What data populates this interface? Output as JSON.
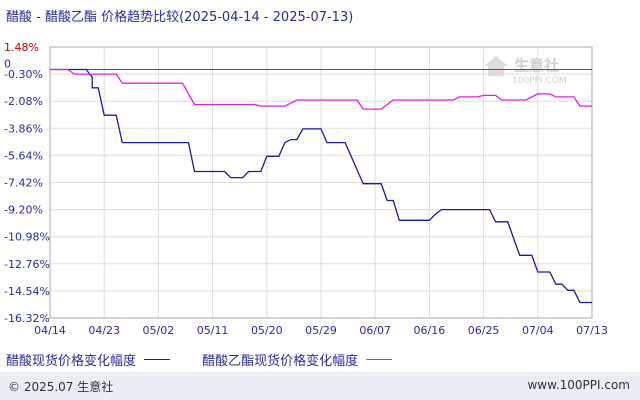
{
  "title": "醋酸 - 醋酸乙酯 价格趋势比较(2025-04-14 - 2025-07-13)",
  "watermark": {
    "name": "生意社",
    "url": "100PPI.COM"
  },
  "footer": {
    "left": "© 2025.07 生意社",
    "right": "www.100PPI.com"
  },
  "colors": {
    "series1": "#1a1aa8",
    "series2": "#e020e0",
    "zero_line": "#555555",
    "grid": "#dddddd",
    "axis_text": "#2a2aa0",
    "top_tick": "#cc0000"
  },
  "chart_data": {
    "type": "line",
    "title": "醋酸 - 醋酸乙酯 价格趋势比较(2025-04-14 - 2025-07-13)",
    "ylim": [
      -16.32,
      1.48
    ],
    "y_ticks": [
      "1.48%",
      "-0.30%",
      "-2.08%",
      "-3.86%",
      "-5.64%",
      "-7.42%",
      "-9.20%",
      "-10.98%",
      "-12.76%",
      "-14.54%",
      "-16.32%"
    ],
    "y_tick_values": [
      1.48,
      -0.3,
      -2.08,
      -3.86,
      -5.64,
      -7.42,
      -9.2,
      -10.98,
      -12.76,
      -14.54,
      -16.32
    ],
    "x_labels": [
      "04/14",
      "04/23",
      "05/02",
      "05/11",
      "05/20",
      "05/29",
      "06/07",
      "06/16",
      "06/25",
      "07/04",
      "07/13"
    ],
    "zero_label": "0",
    "grid": true,
    "legend_position": "bottom",
    "series": [
      {
        "name": "醋酸现货价格变化幅度",
        "color": "#1a1aa8",
        "points": [
          [
            "04/14",
            0
          ],
          [
            "04/20",
            0
          ],
          [
            "04/21",
            -0.5
          ],
          [
            "04/21",
            -1.2
          ],
          [
            "04/22",
            -1.2
          ],
          [
            "04/23",
            -3.0
          ],
          [
            "04/25",
            -3.0
          ],
          [
            "04/26",
            -4.8
          ],
          [
            "05/07",
            -4.8
          ],
          [
            "05/08",
            -6.7
          ],
          [
            "05/13",
            -6.7
          ],
          [
            "05/14",
            -7.1
          ],
          [
            "05/16",
            -7.1
          ],
          [
            "05/17",
            -6.7
          ],
          [
            "05/19",
            -6.7
          ],
          [
            "05/20",
            -5.7
          ],
          [
            "05/22",
            -5.7
          ],
          [
            "05/23",
            -4.8
          ],
          [
            "05/24",
            -4.6
          ],
          [
            "05/25",
            -4.6
          ],
          [
            "05/26",
            -3.9
          ],
          [
            "05/29",
            -3.9
          ],
          [
            "05/30",
            -4.8
          ],
          [
            "06/02",
            -4.8
          ],
          [
            "06/05",
            -7.5
          ],
          [
            "06/08",
            -7.5
          ],
          [
            "06/09",
            -8.6
          ],
          [
            "06/10",
            -8.6
          ],
          [
            "06/11",
            -9.9
          ],
          [
            "06/16",
            -9.9
          ],
          [
            "06/17",
            -9.5
          ],
          [
            "06/18",
            -9.2
          ],
          [
            "06/26",
            -9.2
          ],
          [
            "06/27",
            -10.0
          ],
          [
            "06/29",
            -10.0
          ],
          [
            "07/01",
            -12.2
          ],
          [
            "07/03",
            -12.2
          ],
          [
            "07/04",
            -13.3
          ],
          [
            "07/06",
            -13.3
          ],
          [
            "07/07",
            -14.1
          ],
          [
            "07/08",
            -14.1
          ],
          [
            "07/09",
            -14.5
          ],
          [
            "07/10",
            -14.5
          ],
          [
            "07/11",
            -15.3
          ],
          [
            "07/13",
            -15.3
          ]
        ]
      },
      {
        "name": "醋酸乙酯现货价格变化幅度",
        "color": "#e020e0",
        "points": [
          [
            "04/14",
            0
          ],
          [
            "04/17",
            0
          ],
          [
            "04/18",
            -0.3
          ],
          [
            "04/20",
            -0.3
          ],
          [
            "04/25",
            -0.3
          ],
          [
            "04/26",
            -0.9
          ],
          [
            "05/06",
            -0.9
          ],
          [
            "05/08",
            -2.3
          ],
          [
            "05/18",
            -2.3
          ],
          [
            "05/19",
            -2.4
          ],
          [
            "05/23",
            -2.4
          ],
          [
            "05/25",
            -2.0
          ],
          [
            "06/04",
            -2.0
          ],
          [
            "06/05",
            -2.6
          ],
          [
            "06/08",
            -2.6
          ],
          [
            "06/10",
            -2.0
          ],
          [
            "06/20",
            -2.0
          ],
          [
            "06/21",
            -1.8
          ],
          [
            "06/24",
            -1.8
          ],
          [
            "06/25",
            -1.7
          ],
          [
            "06/27",
            -1.7
          ],
          [
            "06/28",
            -2.0
          ],
          [
            "07/02",
            -2.0
          ],
          [
            "07/04",
            -1.6
          ],
          [
            "07/06",
            -1.6
          ],
          [
            "07/07",
            -1.8
          ],
          [
            "07/10",
            -1.8
          ],
          [
            "07/11",
            -2.4
          ],
          [
            "07/13",
            -2.4
          ]
        ]
      }
    ]
  }
}
